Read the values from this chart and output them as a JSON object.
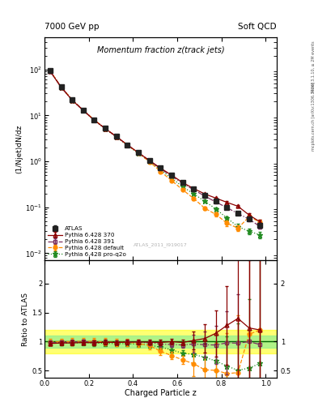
{
  "title": "Momentum fraction z(track jets)",
  "header_left": "7000 GeV pp",
  "header_right": "Soft QCD",
  "ylabel_main": "(1/Njet)dN/dz",
  "ylabel_ratio": "Ratio to ATLAS",
  "xlabel": "Charged Particle z",
  "watermark": "ATLAS_2011_I919017",
  "right_label": "Rivet 3.1.10, ≥ 2M events",
  "right_label2": "mcplots.cern.ch [arXiv:1306.3436]",
  "xlim": [
    0.0,
    1.05
  ],
  "ylim_main": [
    0.007,
    500
  ],
  "ylim_ratio": [
    0.38,
    2.4
  ],
  "x_atlas": [
    0.025,
    0.075,
    0.125,
    0.175,
    0.225,
    0.275,
    0.325,
    0.375,
    0.425,
    0.475,
    0.525,
    0.575,
    0.625,
    0.675,
    0.725,
    0.775,
    0.825,
    0.875,
    0.925,
    0.975
  ],
  "y_atlas": [
    95,
    42,
    22,
    13,
    8.0,
    5.2,
    3.5,
    2.3,
    1.55,
    1.05,
    0.72,
    0.5,
    0.35,
    0.25,
    0.185,
    0.138,
    0.1,
    0.075,
    0.055,
    0.04
  ],
  "y_atlas_err": [
    3.5,
    1.5,
    0.8,
    0.5,
    0.3,
    0.2,
    0.13,
    0.09,
    0.06,
    0.04,
    0.03,
    0.02,
    0.015,
    0.011,
    0.009,
    0.007,
    0.006,
    0.005,
    0.004,
    0.004
  ],
  "x_mc": [
    0.025,
    0.075,
    0.125,
    0.175,
    0.225,
    0.275,
    0.325,
    0.375,
    0.425,
    0.475,
    0.525,
    0.575,
    0.625,
    0.675,
    0.725,
    0.775,
    0.825,
    0.875,
    0.925,
    0.975
  ],
  "y_p370": [
    92,
    41,
    21.5,
    12.8,
    7.85,
    5.15,
    3.45,
    2.28,
    1.54,
    1.04,
    0.71,
    0.5,
    0.345,
    0.255,
    0.195,
    0.158,
    0.128,
    0.105,
    0.068,
    0.048
  ],
  "y_p370_err": [
    0.5,
    0.3,
    0.2,
    0.12,
    0.08,
    0.06,
    0.04,
    0.03,
    0.02,
    0.015,
    0.012,
    0.01,
    0.008,
    0.007,
    0.006,
    0.006,
    0.006,
    0.006,
    0.006,
    0.005
  ],
  "y_p391": [
    93,
    41.5,
    21.8,
    13.0,
    7.9,
    5.15,
    3.45,
    2.28,
    1.53,
    1.03,
    0.69,
    0.475,
    0.33,
    0.24,
    0.175,
    0.13,
    0.098,
    0.073,
    0.055,
    0.038
  ],
  "y_p391_err": [
    0.5,
    0.3,
    0.2,
    0.12,
    0.08,
    0.06,
    0.04,
    0.03,
    0.02,
    0.015,
    0.012,
    0.01,
    0.008,
    0.007,
    0.006,
    0.005,
    0.005,
    0.005,
    0.005,
    0.004
  ],
  "y_pdef": [
    94,
    42,
    22,
    13.1,
    8.0,
    5.18,
    3.45,
    2.28,
    1.5,
    0.98,
    0.6,
    0.38,
    0.24,
    0.155,
    0.095,
    0.07,
    0.045,
    0.035,
    0.062,
    0.048
  ],
  "y_pdef_err": [
    0.5,
    0.3,
    0.2,
    0.12,
    0.08,
    0.06,
    0.04,
    0.03,
    0.025,
    0.02,
    0.018,
    0.015,
    0.012,
    0.01,
    0.008,
    0.007,
    0.006,
    0.005,
    0.006,
    0.005
  ],
  "y_pq2o": [
    93,
    41,
    21.5,
    12.8,
    7.8,
    5.05,
    3.38,
    2.22,
    1.48,
    0.99,
    0.65,
    0.43,
    0.28,
    0.195,
    0.135,
    0.092,
    0.058,
    0.038,
    0.03,
    0.025
  ],
  "y_pq2o_err": [
    0.5,
    0.3,
    0.2,
    0.12,
    0.08,
    0.06,
    0.04,
    0.03,
    0.02,
    0.015,
    0.012,
    0.01,
    0.008,
    0.007,
    0.006,
    0.005,
    0.005,
    0.005,
    0.004,
    0.004
  ],
  "color_atlas": "#222222",
  "color_p370": "#8B0000",
  "color_p391": "#7B3060",
  "color_pdef": "#FF8C00",
  "color_pq2o": "#228B22",
  "band_yellow_lo": 0.8,
  "band_yellow_hi": 1.2,
  "band_yellow_color": "#FFFF00",
  "band_yellow_alpha": 0.55,
  "band_green_lo": 0.9,
  "band_green_hi": 1.1,
  "band_green_color": "#90EE90",
  "band_green_alpha": 0.7
}
